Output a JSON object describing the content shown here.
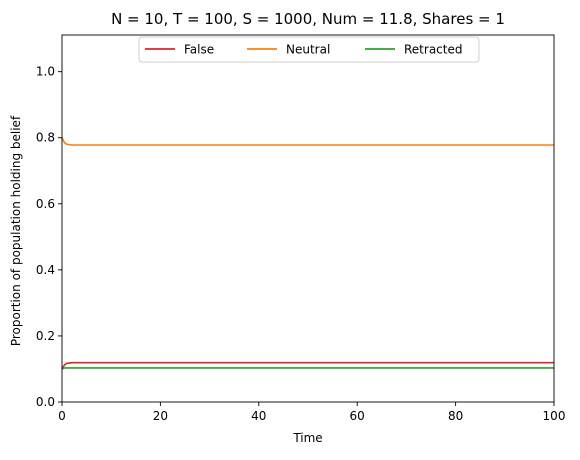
{
  "chart_data": {
    "type": "line",
    "title": "N = 10, T = 100, S = 1000, Num = 11.8, Shares = 1",
    "xlabel": "Time",
    "ylabel": "Proportion of population holding belief",
    "xlim": [
      0,
      100
    ],
    "ylim": [
      0,
      1.111
    ],
    "xticks": [
      0,
      20,
      40,
      60,
      80,
      100
    ],
    "xtick_labels": [
      "0",
      "20",
      "40",
      "60",
      "80",
      "100"
    ],
    "yticks": [
      0.0,
      0.2,
      0.4,
      0.6,
      0.8,
      1.0
    ],
    "ytick_labels": [
      "0.0",
      "0.2",
      "0.4",
      "0.6",
      "0.8",
      "1.0"
    ],
    "grid": false,
    "legend": {
      "placement": "upper-center",
      "columns": 3
    },
    "series": [
      {
        "name": "False",
        "color": "#d62728",
        "x": [
          0,
          0.5,
          1,
          1.5,
          2,
          3,
          100
        ],
        "y": [
          0.1,
          0.112,
          0.117,
          0.118,
          0.119,
          0.119,
          0.119
        ]
      },
      {
        "name": "Neutral",
        "color": "#ff7f0e",
        "x": [
          0,
          0.5,
          1,
          1.5,
          2,
          3,
          100
        ],
        "y": [
          0.8,
          0.785,
          0.78,
          0.779,
          0.778,
          0.778,
          0.778
        ]
      },
      {
        "name": "Retracted",
        "color": "#2ca02c",
        "x": [
          0,
          0.5,
          1,
          100
        ],
        "y": [
          0.1,
          0.103,
          0.103,
          0.103
        ]
      }
    ]
  }
}
